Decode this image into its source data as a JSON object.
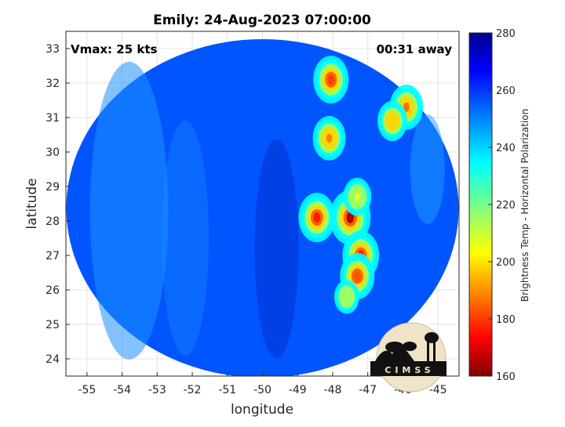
{
  "chart_data": {
    "type": "heatmap",
    "title": "Emily: 24-Aug-2023 07:00:00",
    "xlabel": "longitude",
    "ylabel": "latitude",
    "xlim": [
      -55.6,
      -44.4
    ],
    "ylim": [
      23.5,
      33.5
    ],
    "x_ticks": [
      "-55",
      "-54",
      "-53",
      "-52",
      "-51",
      "-50",
      "-49",
      "-48",
      "-47",
      "-46",
      "-45"
    ],
    "y_ticks": [
      "33",
      "32",
      "31",
      "30",
      "29",
      "28",
      "27",
      "26",
      "25",
      "24"
    ],
    "annotations": {
      "vmax": "Vmax: 25 kts",
      "time_away": "00:31 away"
    },
    "grid": true,
    "colorbar": {
      "label": "Brightness Temp - Horizontal Polarization",
      "range": [
        160,
        280
      ],
      "ticks": [
        "280",
        "260",
        "240",
        "220",
        "200",
        "180",
        "160"
      ],
      "colormap": "jet"
    },
    "background_level": 255,
    "swath": {
      "center": [
        -50,
        28.5
      ],
      "type": "circular"
    },
    "features": [
      {
        "lon": -47.5,
        "lat": 28.1,
        "value": 165
      },
      {
        "lon": -47.2,
        "lat": 27.0,
        "value": 178
      },
      {
        "lon": -47.3,
        "lat": 26.4,
        "value": 185
      },
      {
        "lon": -48.45,
        "lat": 28.1,
        "value": 178
      },
      {
        "lon": -48.05,
        "lat": 32.1,
        "value": 182
      },
      {
        "lon": -48.1,
        "lat": 30.4,
        "value": 190
      },
      {
        "lon": -45.9,
        "lat": 31.3,
        "value": 188
      },
      {
        "lon": -46.3,
        "lat": 30.9,
        "value": 200
      },
      {
        "lon": -47.6,
        "lat": 25.8,
        "value": 215
      },
      {
        "lon": -47.3,
        "lat": 28.7,
        "value": 205
      }
    ],
    "logo_text": "CIMSS"
  }
}
